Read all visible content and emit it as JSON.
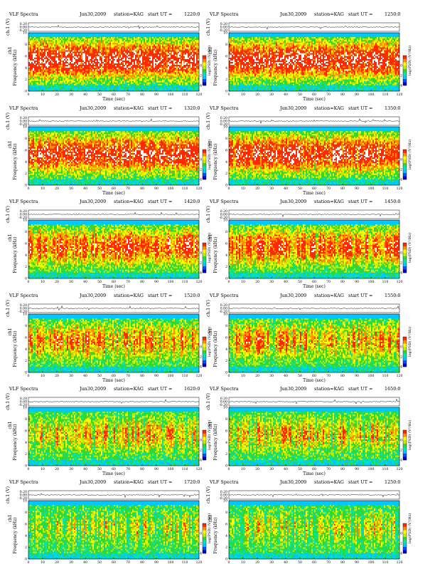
{
  "figure_title": "VLF Spectra",
  "date": "Jun30,2009",
  "station": "station=KAG",
  "start_prefix": "start  UT  =",
  "channel_label": "ch1",
  "time_label": "Time  (sec)",
  "freq_label": "Frequency  (kHz)",
  "wave_label": "ch.1 (V)",
  "colorbar_label": "log(PSD) (V²/Hz)",
  "colors": {
    "spectrum_scale": [
      "#0000c8",
      "#0050ff",
      "#00c8ff",
      "#00e8b0",
      "#30d830",
      "#c8e800",
      "#ffff00",
      "#ff9000",
      "#ff2800",
      "#ffffff"
    ],
    "axis": "#000000",
    "waveform": "#000000",
    "top_band": "#00c8ff"
  },
  "panels": [
    {
      "start": "1220:0",
      "intensity": 0.88
    },
    {
      "start": "1250:0",
      "intensity": 0.86
    },
    {
      "start": "1320:0",
      "intensity": 0.8
    },
    {
      "start": "1350:0",
      "intensity": 0.78
    },
    {
      "start": "1420:0",
      "intensity": 0.62
    },
    {
      "start": "1450:0",
      "intensity": 0.6
    },
    {
      "start": "1520:0",
      "intensity": 0.45
    },
    {
      "start": "1550:0",
      "intensity": 0.43
    },
    {
      "start": "1620:0",
      "intensity": 0.33
    },
    {
      "start": "1650:0",
      "intensity": 0.31
    },
    {
      "start": "1720:0",
      "intensity": 0.22
    },
    {
      "start": "1250:0",
      "intensity": 0.2
    }
  ],
  "chart_data": {
    "type": "heatmap",
    "xlabel": "Time  (sec)",
    "ylabel": "Frequency  (kHz)",
    "xlim": [
      0,
      120
    ],
    "ylim": [
      0,
      10
    ],
    "x_ticks": [
      0,
      10,
      20,
      30,
      40,
      50,
      60,
      70,
      80,
      90,
      100,
      110,
      120
    ],
    "y_ticks": [
      0,
      2,
      4,
      6,
      8,
      10
    ],
    "waveform_ylim": [
      -0.2,
      0.2
    ],
    "waveform_ticks": [
      "0.20",
      "0.00",
      "-0.20"
    ],
    "colorbar_ticks": [
      -4,
      -2,
      0
    ]
  }
}
